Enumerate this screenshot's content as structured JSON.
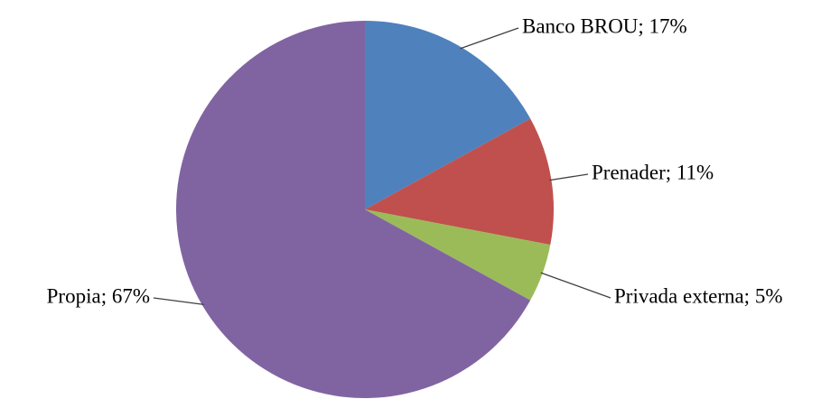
{
  "chart_data": {
    "type": "pie",
    "values": [
      17,
      11,
      5,
      67
    ],
    "value_labels": [
      "Banco BROU; 17%",
      "Prenader; 11%",
      "Privada externa; 5%",
      "Propia; 67%"
    ],
    "colors": [
      "#4f81bd",
      "#c0504d",
      "#9bbb59",
      "#8064a2"
    ]
  }
}
